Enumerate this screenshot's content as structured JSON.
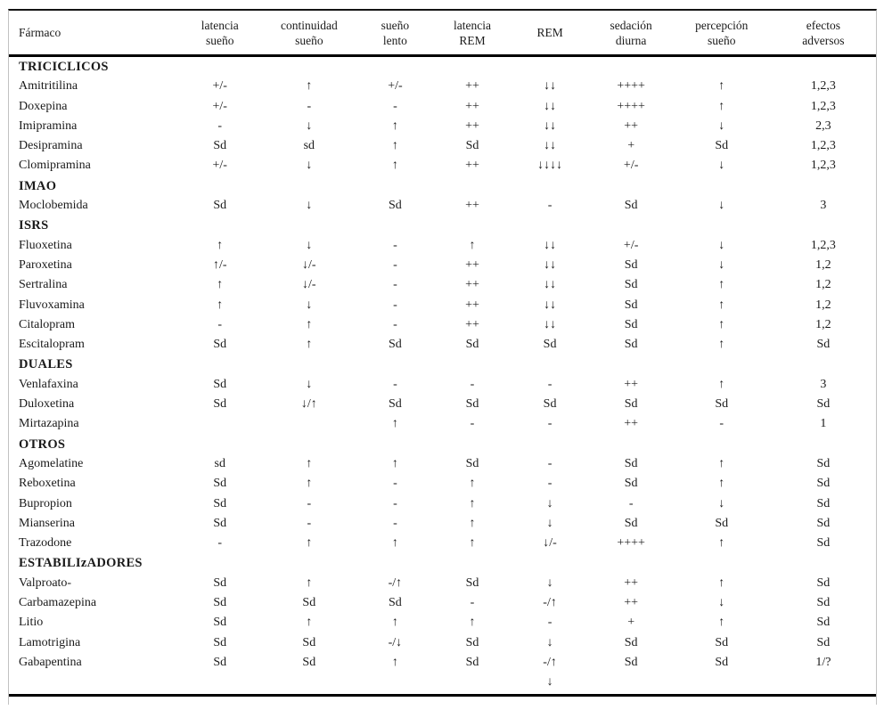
{
  "table": {
    "columns": [
      {
        "key": "farmaco",
        "label": "Fármaco"
      },
      {
        "key": "latencia-sueno",
        "label": "latencia\nsueño"
      },
      {
        "key": "continuidad-sueno",
        "label": "continuidad\nsueño"
      },
      {
        "key": "sueno-lento",
        "label": "sueño\nlento"
      },
      {
        "key": "latencia-rem",
        "label": "latencia\nREM"
      },
      {
        "key": "rem",
        "label": "REM"
      },
      {
        "key": "sedacion-diurna",
        "label": "sedación\ndiurna"
      },
      {
        "key": "percepcion-sueno",
        "label": "percepción\nsueño"
      },
      {
        "key": "efectos-adversos",
        "label": "efectos\nadversos"
      }
    ],
    "sections": [
      {
        "title": "TRICICLICOS",
        "rows": [
          {
            "name": "Amitritilina",
            "values": [
              "+/-",
              "↑",
              "+/-",
              "++",
              "↓↓",
              "++++",
              "↑",
              "1,2,3"
            ]
          },
          {
            "name": "Doxepina",
            "values": [
              "+/-",
              "-",
              "-",
              "++",
              "↓↓",
              "++++",
              "↑",
              "1,2,3"
            ]
          },
          {
            "name": "Imipramina",
            "values": [
              "-",
              "↓",
              "↑",
              "++",
              "↓↓",
              "++",
              "↓",
              "2,3"
            ]
          },
          {
            "name": "Desipramina",
            "values": [
              "Sd",
              "sd",
              "↑",
              "Sd",
              "↓↓",
              "+",
              "Sd",
              "1,2,3"
            ]
          },
          {
            "name": "Clomipramina",
            "values": [
              "+/-",
              "↓",
              "↑",
              "++",
              "↓↓↓↓",
              "+/-",
              "↓",
              "1,2,3"
            ]
          }
        ]
      },
      {
        "title": "IMAO",
        "rows": [
          {
            "name": "Moclobemida",
            "values": [
              "Sd",
              "↓",
              "Sd",
              "++",
              "-",
              "Sd",
              "↓",
              "3"
            ]
          }
        ]
      },
      {
        "title": "ISRS",
        "rows": [
          {
            "name": "Fluoxetina",
            "values": [
              "↑",
              "↓",
              "-",
              "↑",
              "↓↓",
              "+/-",
              "↓",
              "1,2,3"
            ]
          },
          {
            "name": "Paroxetina",
            "values": [
              "↑/-",
              "↓/-",
              "-",
              "++",
              "↓↓",
              "Sd",
              "↓",
              "1,2"
            ]
          },
          {
            "name": "Sertralina",
            "values": [
              "↑",
              "↓/-",
              "-",
              "++",
              "↓↓",
              "Sd",
              "↑",
              "1,2"
            ]
          },
          {
            "name": "Fluvoxamina",
            "values": [
              "↑",
              "↓",
              "-",
              "++",
              "↓↓",
              "Sd",
              "↑",
              "1,2"
            ]
          },
          {
            "name": "Citalopram",
            "values": [
              "-",
              "↑",
              "-",
              "++",
              "↓↓",
              "Sd",
              "↑",
              "1,2"
            ]
          },
          {
            "name": "Escitalopram",
            "values": [
              "Sd",
              "↑",
              "Sd",
              "Sd",
              "Sd",
              "Sd",
              "↑",
              "Sd"
            ]
          }
        ]
      },
      {
        "title": "DUALES",
        "rows": [
          {
            "name": "Venlafaxina",
            "values": [
              "Sd",
              "↓",
              "-",
              "-",
              "-",
              "++",
              "↑",
              "3"
            ]
          },
          {
            "name": "Duloxetina",
            "values": [
              "Sd",
              "↓/↑",
              "Sd",
              "Sd",
              "Sd",
              "Sd",
              "Sd",
              "Sd"
            ]
          },
          {
            "name": "Mirtazapina",
            "values": [
              "",
              "",
              "↑",
              "-",
              "-",
              "++",
              "-",
              "1"
            ]
          }
        ]
      },
      {
        "title": "OTROS",
        "rows": [
          {
            "name": "Agomelatine",
            "values": [
              "sd",
              "↑",
              "↑",
              "Sd",
              "-",
              "Sd",
              "↑",
              "Sd"
            ]
          },
          {
            "name": "Reboxetina",
            "values": [
              "Sd",
              "↑",
              "-",
              "↑",
              "-",
              "Sd",
              "↑",
              "Sd"
            ]
          },
          {
            "name": "Bupropion",
            "values": [
              "Sd",
              "-",
              "-",
              "↑",
              "↓",
              "-",
              "↓",
              "Sd"
            ]
          },
          {
            "name": "Mianserina",
            "values": [
              "Sd",
              "-",
              "-",
              "↑",
              "↓",
              "Sd",
              "Sd",
              "Sd"
            ]
          },
          {
            "name": "Trazodone",
            "values": [
              "-",
              "↑",
              "↑",
              "↑",
              "↓/-",
              "++++",
              "↑",
              "Sd"
            ]
          }
        ]
      },
      {
        "title": "ESTABILIzADORES",
        "rows": [
          {
            "name": "Valproato-",
            "values": [
              "Sd",
              "↑",
              "-/↑",
              "Sd",
              "↓",
              "++",
              "↑",
              "Sd"
            ]
          },
          {
            "name": "Carbamazepina",
            "values": [
              "Sd",
              "Sd",
              "Sd",
              "-",
              "-/↑",
              "++",
              "↓",
              "Sd"
            ]
          },
          {
            "name": "Litio",
            "values": [
              "Sd",
              "↑",
              "↑",
              "↑",
              "-",
              "+",
              "↑",
              "Sd"
            ]
          },
          {
            "name": "Lamotrigina",
            "values": [
              "Sd",
              "Sd",
              "-/↓",
              "Sd",
              "↓",
              "Sd",
              "Sd",
              "Sd"
            ]
          },
          {
            "name": "Gabapentina",
            "values": [
              "Sd",
              "Sd",
              "↑",
              "Sd",
              "-/↑\n↓",
              "Sd",
              "Sd",
              "1/?"
            ]
          }
        ]
      }
    ],
    "colors": {
      "text": "#1a1a1a",
      "rule": "#000000",
      "outer_border": "#c2c2c2",
      "background": "#ffffff"
    }
  }
}
